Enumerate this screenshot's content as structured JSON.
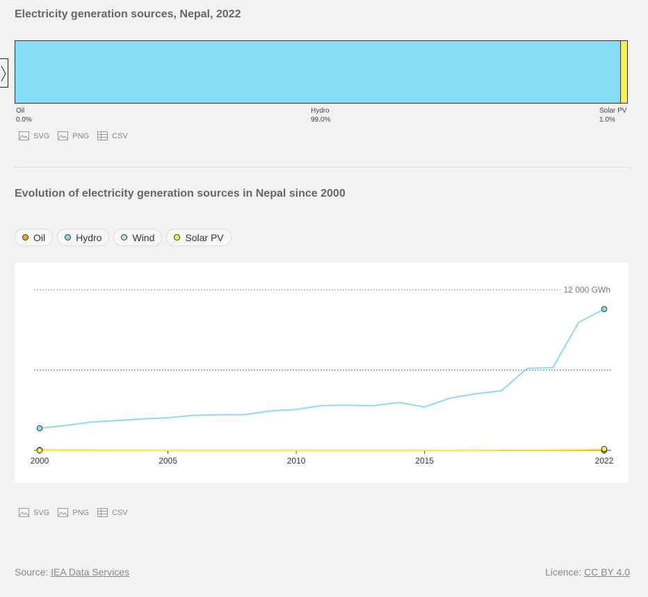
{
  "section1": {
    "title": "Electricity generation sources, Nepal, 2022"
  },
  "section2": {
    "title": "Evolution of electricity generation sources in Nepal since 2000"
  },
  "exports": {
    "svg": "SVG",
    "png": "PNG",
    "csv": "CSV"
  },
  "colors": {
    "oil": "#f5a623",
    "hydro": "#87dcf5",
    "wind": "#b5e8d3",
    "solar": "#f7f047"
  },
  "chart_data": [
    {
      "type": "bar",
      "stacked": true,
      "title": "Electricity generation sources, Nepal, 2022",
      "categories": [
        "Oil",
        "Hydro",
        "Solar PV"
      ],
      "values": [
        0.0,
        99.0,
        1.0
      ],
      "value_labels": [
        "0.0%",
        "99.0%",
        "1.0%"
      ]
    },
    {
      "type": "line",
      "title": "Evolution of electricity generation sources in Nepal since 2000",
      "x": [
        2000,
        2001,
        2002,
        2003,
        2004,
        2005,
        2006,
        2007,
        2008,
        2009,
        2010,
        2011,
        2012,
        2013,
        2014,
        2015,
        2016,
        2017,
        2018,
        2019,
        2020,
        2021,
        2022
      ],
      "xticks": [
        "2000",
        "2005",
        "2010",
        "2015",
        "2022"
      ],
      "ylim": [
        0,
        12000
      ],
      "ytick_label": "12 000 GWh",
      "grid": true,
      "legend_position": "top-left",
      "series": [
        {
          "name": "Oil",
          "values": [
            30,
            20,
            15,
            10,
            8,
            6,
            5,
            5,
            5,
            5,
            5,
            5,
            5,
            5,
            5,
            5,
            5,
            5,
            5,
            5,
            5,
            5,
            5
          ]
        },
        {
          "name": "Hydro",
          "values": [
            1650,
            1860,
            2110,
            2230,
            2350,
            2440,
            2620,
            2660,
            2670,
            2950,
            3060,
            3350,
            3370,
            3340,
            3580,
            3240,
            3910,
            4230,
            4460,
            6130,
            6180,
            9560,
            10560
          ]
        },
        {
          "name": "Wind",
          "values": [
            0,
            0,
            0,
            0,
            0,
            0,
            0,
            0,
            0,
            0,
            0,
            0,
            0,
            0,
            0,
            0,
            0,
            0,
            0,
            0,
            0,
            0,
            0
          ]
        },
        {
          "name": "Solar PV",
          "values": [
            0,
            0,
            0,
            0,
            0,
            0,
            0,
            0,
            0,
            0,
            0,
            0,
            0,
            0,
            0,
            0,
            10,
            20,
            30,
            30,
            40,
            60,
            105
          ]
        }
      ]
    }
  ],
  "footer": {
    "source_prefix": "Source: ",
    "source_link": "IEA Data Services",
    "licence_prefix": "Licence: ",
    "licence_link": "CC BY 4.0"
  }
}
